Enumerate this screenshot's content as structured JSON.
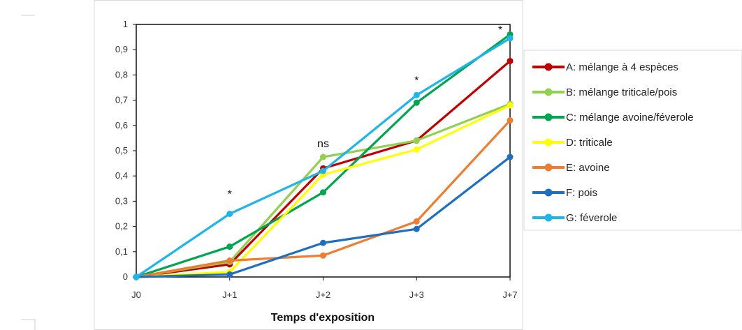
{
  "chart_data": {
    "type": "line",
    "title": "",
    "xlabel": "Temps d'exposition",
    "ylabel": "",
    "categories": [
      "J0",
      "J+1",
      "J+2",
      "J+3",
      "J+7"
    ],
    "ylim": [
      0,
      1
    ],
    "yticks": [
      "0",
      "0,1",
      "0,2",
      "0,3",
      "0,4",
      "0,5",
      "0,6",
      "0,7",
      "0,8",
      "0,9",
      "1"
    ],
    "grid": false,
    "legend_position": "right",
    "series": [
      {
        "name": "A: mélange à 4 espèces",
        "color": "#c00000",
        "values": [
          0,
          0.05,
          0.43,
          0.54,
          0.855
        ]
      },
      {
        "name": "B: mélange triticale/pois",
        "color": "#92d050",
        "values": [
          0,
          0.06,
          0.475,
          0.54,
          0.685
        ]
      },
      {
        "name": "C: mélange avoine/féverole",
        "color": "#00a550",
        "values": [
          0,
          0.12,
          0.335,
          0.69,
          0.96
        ]
      },
      {
        "name": "D: triticale",
        "color": "#ffff00",
        "values": [
          0,
          0.02,
          0.405,
          0.505,
          0.68
        ]
      },
      {
        "name": "E: avoine",
        "color": "#ed7d31",
        "values": [
          0,
          0.065,
          0.085,
          0.22,
          0.62
        ]
      },
      {
        "name": "F: pois",
        "color": "#1f6fc0",
        "values": [
          0,
          0.01,
          0.135,
          0.19,
          0.475
        ]
      },
      {
        "name": "G: féverole",
        "color": "#1fb4ea",
        "values": [
          0,
          0.25,
          0.42,
          0.72,
          0.945
        ]
      }
    ],
    "annotations": [
      {
        "text": "*",
        "category": "J+1",
        "y": 0.33
      },
      {
        "text": "ns",
        "category": "J+2",
        "y": 0.53
      },
      {
        "text": "*",
        "category": "J+3",
        "y": 0.78
      },
      {
        "text": "*",
        "category": "J+7",
        "y": 0.98
      }
    ]
  }
}
